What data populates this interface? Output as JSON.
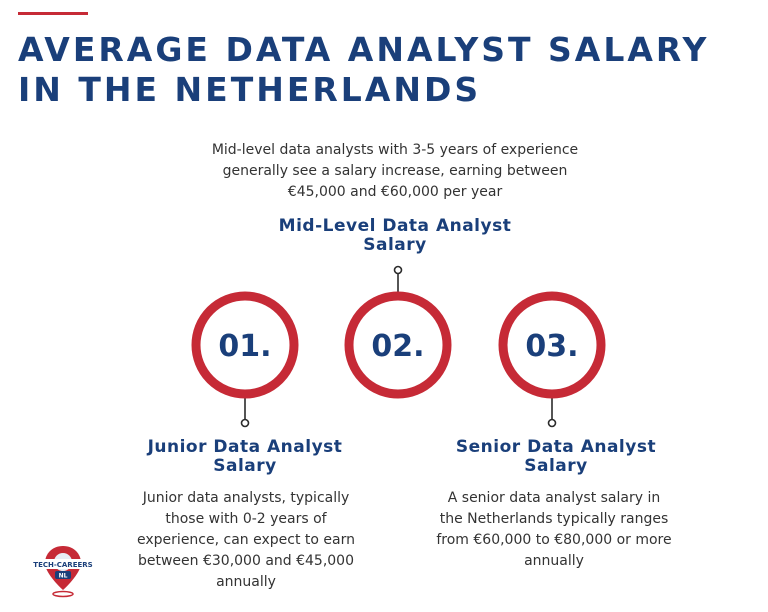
{
  "header": {
    "title": "AVERAGE DATA ANALYST SALARY IN THE NETHERLANDS"
  },
  "levels": [
    {
      "number": "01.",
      "heading": "Junior Data Analyst Salary",
      "description": "Junior data analysts, typically those with 0-2 years of experience, can expect to earn between €30,000 and €45,000 annually"
    },
    {
      "number": "02.",
      "heading": "Mid-Level Data Analyst Salary",
      "description": "Mid-level data analysts with 3-5 years of experience generally see a salary increase, earning between €45,000 and €60,000 per year"
    },
    {
      "number": "03.",
      "heading": "Senior Data Analyst Salary",
      "description": "A senior data analyst salary in the Netherlands typically ranges from €60,000 to €80,000 or more annually"
    }
  ],
  "logo": {
    "text": "TECH-CAREERS",
    "badge": "NL"
  },
  "colors": {
    "accent_red": "#c62a36",
    "title_blue": "#1a3f7a",
    "body_text": "#333333"
  }
}
